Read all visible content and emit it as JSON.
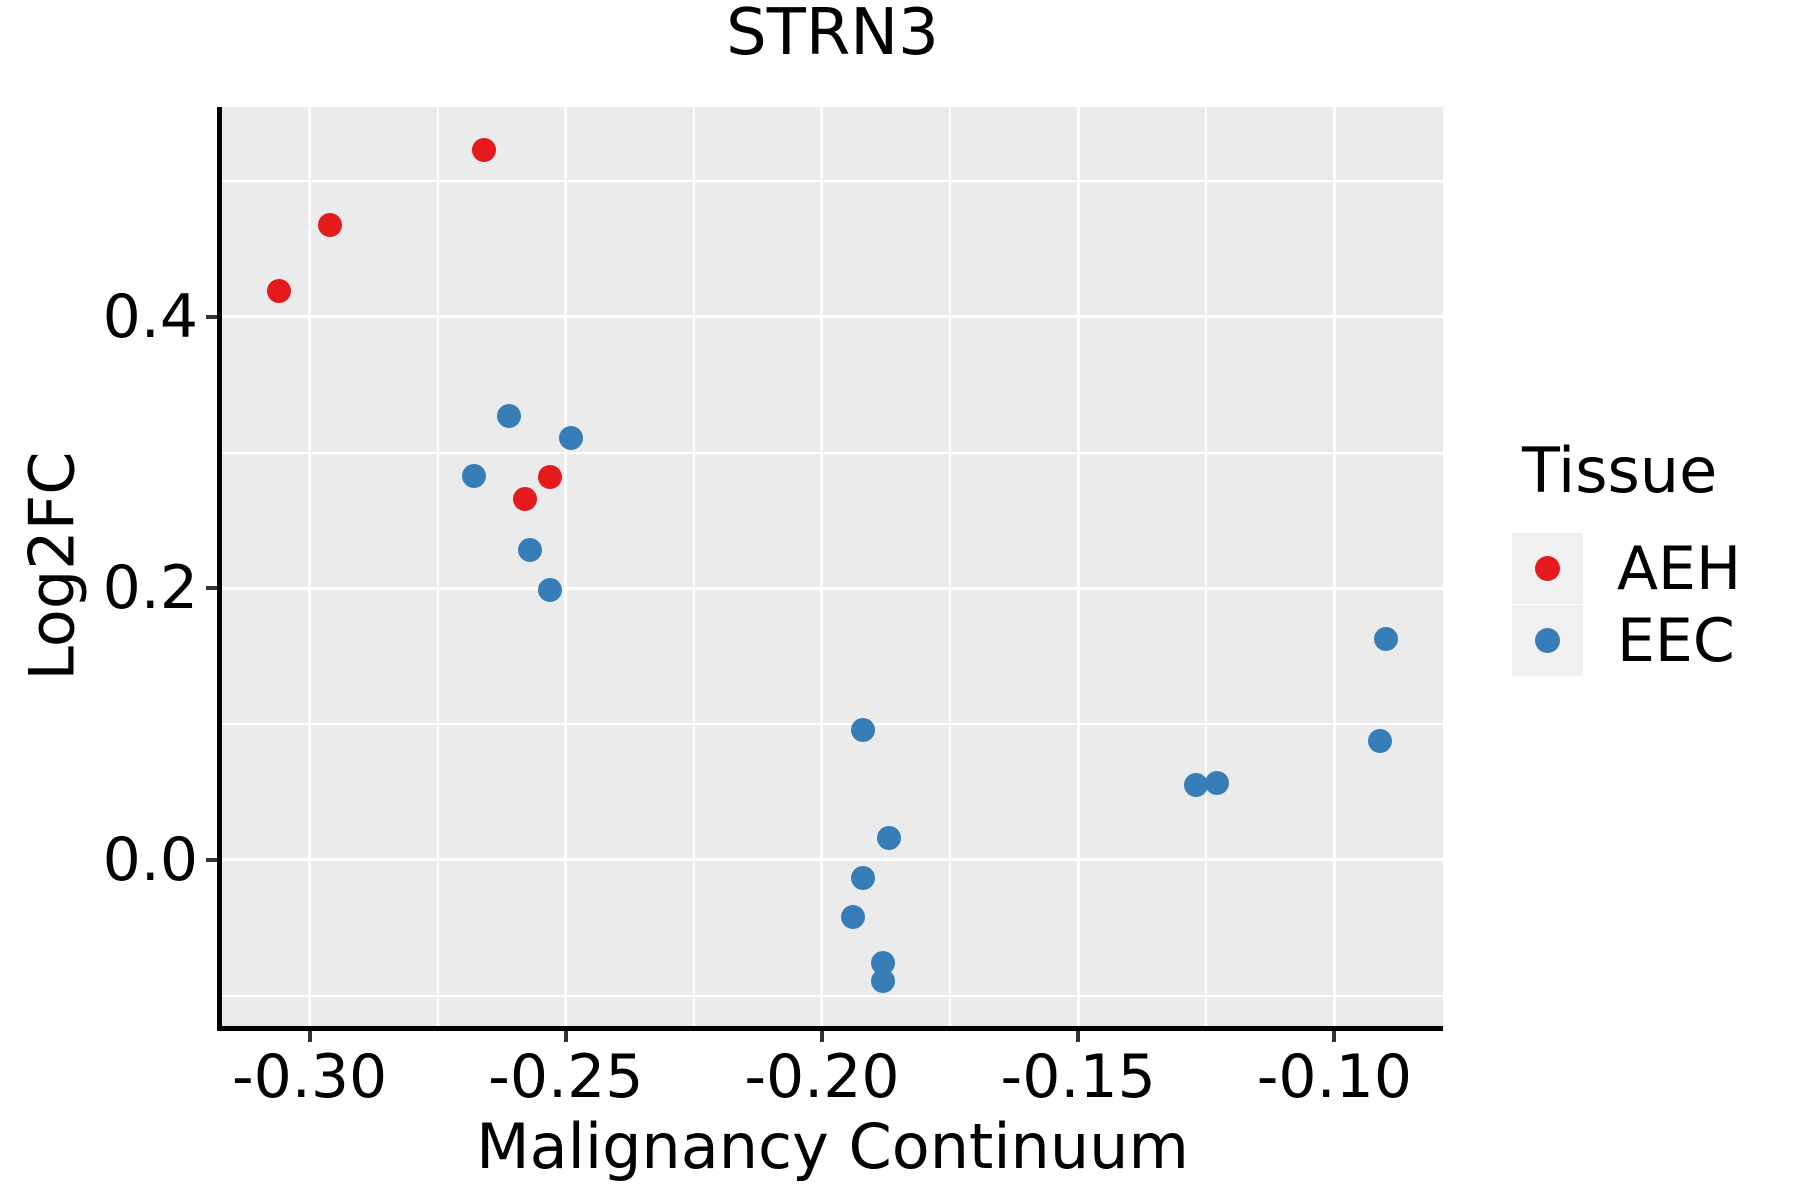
{
  "chart_data": {
    "type": "scatter",
    "title": "STRN3",
    "xlabel": "Malignancy Continuum",
    "ylabel": "Log2FC",
    "legend_title": "Tissue",
    "legend_position": "right",
    "grid": "major+minor",
    "panel_background": "#EBEBEB",
    "gridline_color": "#FFFFFF",
    "xlim": [
      -0.3171,
      -0.0788
    ],
    "ylim": [
      -0.1223,
      0.5547
    ],
    "x_ticks": {
      "values": [
        -0.3,
        -0.25,
        -0.2,
        -0.15,
        -0.1
      ],
      "labels": [
        "-0.30",
        "-0.25",
        "-0.20",
        "-0.15",
        "-0.10"
      ]
    },
    "y_ticks": {
      "values": [
        0.0,
        0.2,
        0.4
      ],
      "labels": [
        "0.0",
        "0.2",
        "0.4"
      ]
    },
    "x_minor_ticks": [
      -0.275,
      -0.225,
      -0.175,
      -0.125
    ],
    "y_minor_ticks": [
      -0.1,
      0.1,
      0.3,
      0.5
    ],
    "series": [
      {
        "name": "AEH",
        "color": "#E41A1C",
        "points": [
          [
            -0.306,
            0.419
          ],
          [
            -0.296,
            0.468
          ],
          [
            -0.266,
            0.523
          ],
          [
            -0.253,
            0.282
          ],
          [
            -0.258,
            0.266
          ]
        ]
      },
      {
        "name": "EEC",
        "color": "#377EB8",
        "points": [
          [
            -0.261,
            0.327
          ],
          [
            -0.249,
            0.311
          ],
          [
            -0.268,
            0.283
          ],
          [
            -0.257,
            0.228
          ],
          [
            -0.253,
            0.199
          ],
          [
            -0.192,
            0.096
          ],
          [
            -0.187,
            0.016
          ],
          [
            -0.192,
            -0.013
          ],
          [
            -0.194,
            -0.042
          ],
          [
            -0.188,
            -0.076
          ],
          [
            -0.188,
            -0.089
          ],
          [
            -0.127,
            0.055
          ],
          [
            -0.123,
            0.057
          ],
          [
            -0.09,
            0.163
          ],
          [
            -0.091,
            0.088
          ]
        ]
      }
    ]
  }
}
